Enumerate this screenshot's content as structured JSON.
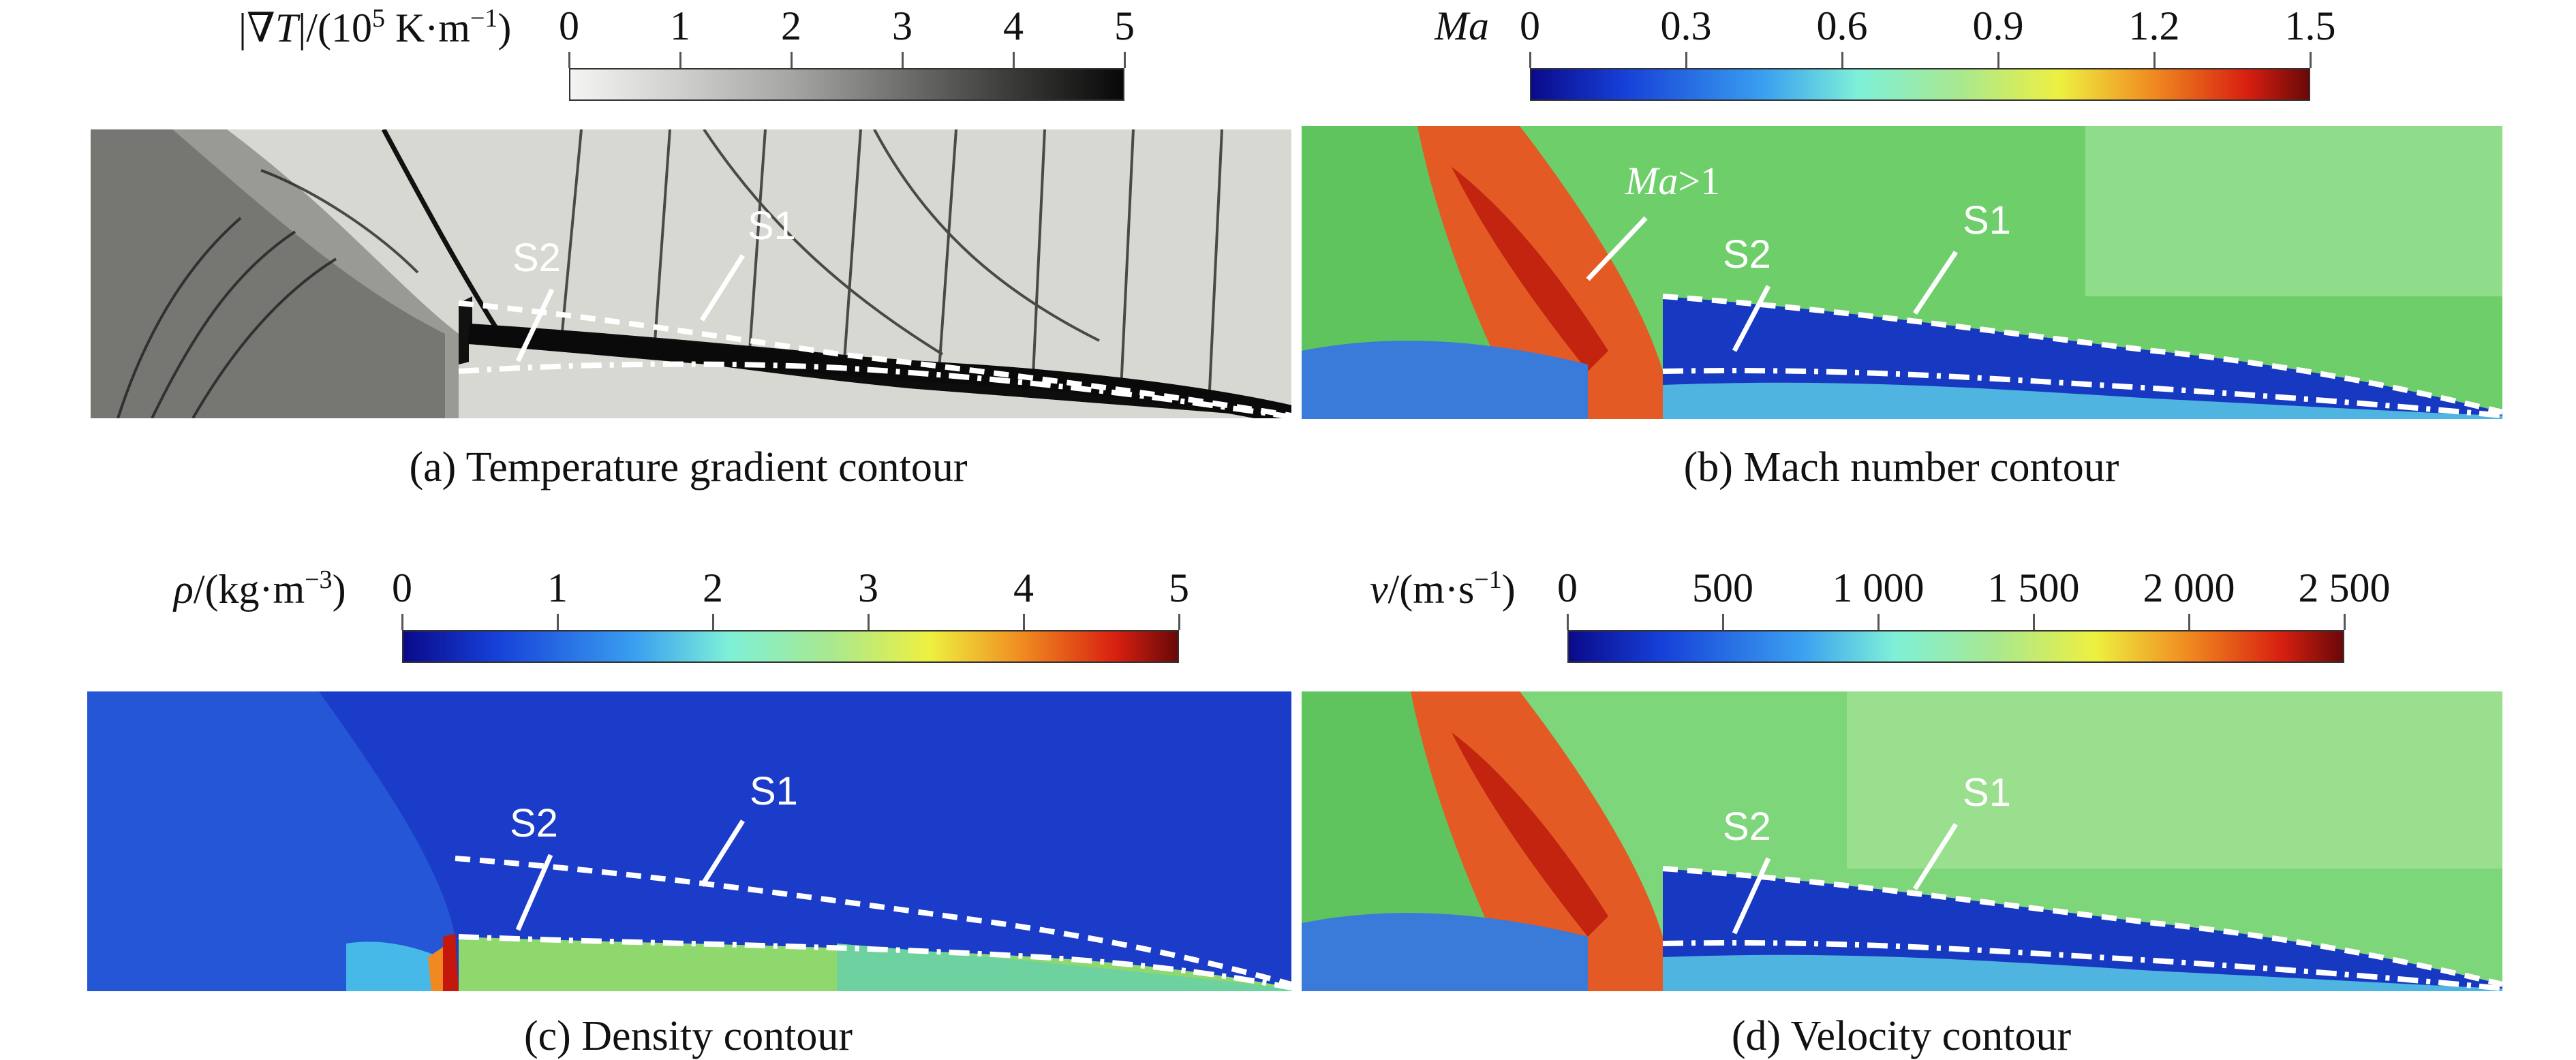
{
  "figure": {
    "panels": [
      {
        "id": "a",
        "caption": "(a) Temperature gradient contour",
        "colorbar": {
          "title_prefix": "|∇",
          "title_var": "T",
          "title_rest": "|/(10",
          "title_sup": "5",
          "title_unit": " K·m",
          "title_unit_sup": "−1",
          "title_close": ")",
          "ticks": [
            "0",
            "1",
            "2",
            "3",
            "4",
            "5"
          ],
          "colormap": "grayscale"
        },
        "labels": [
          "S2",
          "S1"
        ]
      },
      {
        "id": "b",
        "caption": "(b) Mach number contour",
        "colorbar": {
          "title_var": "Ma",
          "ticks": [
            "0",
            "0.3",
            "0.6",
            "0.9",
            "1.2",
            "1.5"
          ],
          "colormap": "jet"
        },
        "labels": [
          "Ma>1",
          "S2",
          "S1"
        ],
        "label_ma_var": "Ma",
        "label_ma_rest": ">1"
      },
      {
        "id": "c",
        "caption": "(c) Density contour",
        "colorbar": {
          "title_var": "ρ",
          "title_rest": "/(kg·m",
          "title_sup": "−3",
          "title_close": ")",
          "ticks": [
            "0",
            "1",
            "2",
            "3",
            "4",
            "5"
          ],
          "colormap": "jet"
        },
        "labels": [
          "S2",
          "S1"
        ]
      },
      {
        "id": "d",
        "caption": "(d) Velocity contour",
        "colorbar": {
          "title_var": "v",
          "title_rest": "/(m·s",
          "title_sup": "−1",
          "title_close": ")",
          "ticks": [
            "0",
            "500",
            "1 000",
            "1 500",
            "2 000",
            "2 500"
          ],
          "colormap": "jet"
        },
        "labels": [
          "S2",
          "S1"
        ]
      }
    ],
    "colors": {
      "jet_low": "#1a1a9e",
      "jet_high": "#7a0a0a",
      "field_blue": "#1a3cc8",
      "field_green": "#6fd06a",
      "field_red": "#e0401c",
      "gray_dark": "#111111",
      "gray_light": "#dcdcd6",
      "annotation": "#ffffff"
    }
  }
}
